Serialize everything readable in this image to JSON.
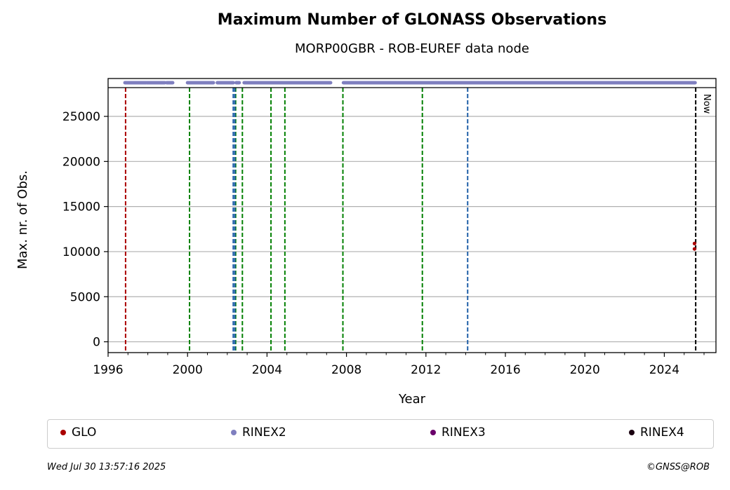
{
  "chart_data": {
    "type": "scatter",
    "title": "Maximum Number of GLONASS Observations",
    "subtitle": "MORP00GBR - ROB-EUREF data node",
    "xlabel": "Year",
    "ylabel": "Max. nr. of Obs.",
    "xlim": [
      1996,
      2026.6
    ],
    "ylim": [
      -1200,
      29200
    ],
    "x_ticks": [
      1996,
      2000,
      2004,
      2008,
      2012,
      2016,
      2020,
      2024
    ],
    "y_ticks": [
      0,
      5000,
      10000,
      15000,
      20000,
      25000
    ],
    "grid": "y",
    "now_label": "Now",
    "now_x": 2025.58,
    "colors": {
      "GLO": "#aa0000",
      "RINEX2": "#7f7fbf",
      "RINEX3": "#6a006a",
      "RINEX4": "#1a0010",
      "green_event": "#008000",
      "blue_event": "#1f5fa8",
      "now_line": "#000000"
    },
    "vlines_red": [
      1996.88
    ],
    "vlines_green": [
      2000.1,
      2002.42,
      2002.76,
      2004.2,
      2004.9,
      2007.82,
      2011.82
    ],
    "vlines_blue": [
      2002.3,
      2002.38,
      2014.1
    ],
    "rinex2_segments": [
      [
        1996.85,
        1997.9
      ],
      [
        1997.95,
        1998.85
      ],
      [
        1998.95,
        1999.25
      ],
      [
        2000.0,
        2001.3
      ],
      [
        2001.5,
        2002.3
      ],
      [
        2002.45,
        2002.6
      ],
      [
        2002.85,
        2007.2
      ],
      [
        2007.85,
        2025.55
      ]
    ],
    "glo_points": [
      {
        "x": 2025.52,
        "y": 10900
      },
      {
        "x": 2025.52,
        "y": 10300
      }
    ],
    "series": [
      {
        "name": "GLO"
      },
      {
        "name": "RINEX2"
      },
      {
        "name": "RINEX3"
      },
      {
        "name": "RINEX4"
      }
    ]
  },
  "footer": {
    "date": "Wed Jul 30 13:57:16 2025",
    "copyright": "©GNSS@ROB"
  }
}
